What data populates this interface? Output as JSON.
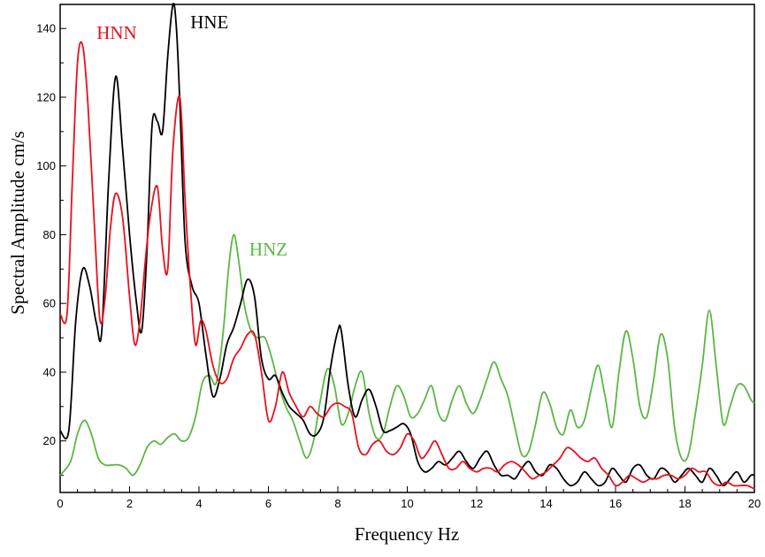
{
  "chart_data": {
    "type": "line",
    "title": "",
    "xlabel": "Frequency Hz",
    "ylabel": "Spectral Amplitude cm/s",
    "xlim": [
      0,
      20
    ],
    "ylim": [
      5,
      147
    ],
    "x_ticks": [
      0,
      2,
      4,
      6,
      8,
      10,
      12,
      14,
      16,
      18,
      20
    ],
    "y_ticks": [
      20,
      40,
      60,
      80,
      100,
      120,
      140
    ],
    "grid": false,
    "legend": "inline labels near curves",
    "series": [
      {
        "name": "HNE",
        "color": "#000000",
        "x": [
          0,
          0.25,
          0.45,
          0.65,
          0.85,
          1.05,
          1.2,
          1.4,
          1.6,
          1.8,
          2.0,
          2.2,
          2.35,
          2.5,
          2.65,
          2.8,
          2.95,
          3.1,
          3.25,
          3.35,
          3.45,
          3.6,
          3.8,
          4.0,
          4.2,
          4.4,
          4.6,
          4.8,
          5.0,
          5.2,
          5.4,
          5.6,
          5.8,
          6.0,
          6.2,
          6.4,
          6.6,
          6.8,
          7.0,
          7.2,
          7.4,
          7.6,
          7.8,
          8.0,
          8.1,
          8.3,
          8.5,
          8.7,
          8.9,
          9.1,
          9.3,
          9.5,
          9.7,
          9.9,
          10.1,
          10.3,
          10.5,
          10.7,
          10.9,
          11.1,
          11.3,
          11.5,
          11.7,
          11.9,
          12.1,
          12.3,
          12.5,
          12.7,
          12.9,
          13.1,
          13.3,
          13.5,
          13.7,
          13.9,
          14.1,
          14.3,
          14.5,
          14.7,
          14.9,
          15.1,
          15.3,
          15.5,
          15.7,
          15.9,
          16.1,
          16.3,
          16.5,
          16.7,
          16.9,
          17.1,
          17.3,
          17.5,
          17.7,
          17.9,
          18.1,
          18.3,
          18.5,
          18.7,
          18.9,
          19.1,
          19.3,
          19.5,
          19.7,
          19.9,
          20.0
        ],
        "y": [
          23,
          23,
          55,
          70,
          65,
          54,
          52,
          96,
          126,
          105,
          80,
          60,
          52,
          75,
          112,
          113,
          110,
          132,
          147,
          140,
          118,
          78,
          65,
          60,
          45,
          33,
          38,
          48,
          53,
          60,
          67,
          62,
          44,
          38,
          39,
          34,
          30,
          28,
          26,
          22,
          22,
          27,
          42,
          52,
          52,
          36,
          27,
          32,
          35,
          30,
          23,
          23,
          24,
          25,
          22,
          14,
          11,
          12,
          14,
          13,
          15,
          17,
          14,
          12,
          15,
          17,
          13,
          10,
          10,
          9,
          12,
          14,
          11,
          10,
          13,
          12,
          9,
          7,
          8,
          11,
          9,
          7,
          8,
          12,
          10,
          8,
          12,
          13,
          10,
          9,
          12,
          11,
          8,
          10,
          12,
          10,
          8,
          12,
          10,
          7,
          9,
          11,
          8,
          10,
          10
        ]
      },
      {
        "name": "HNN",
        "color": "#e8101e",
        "x": [
          0,
          0.2,
          0.35,
          0.5,
          0.65,
          0.8,
          1.0,
          1.15,
          1.3,
          1.45,
          1.6,
          1.8,
          2.0,
          2.15,
          2.3,
          2.45,
          2.6,
          2.8,
          2.95,
          3.1,
          3.25,
          3.45,
          3.6,
          3.75,
          3.9,
          4.05,
          4.2,
          4.4,
          4.6,
          4.8,
          5.0,
          5.2,
          5.4,
          5.6,
          5.8,
          6.0,
          6.2,
          6.4,
          6.6,
          6.8,
          7.0,
          7.2,
          7.4,
          7.6,
          7.8,
          8.0,
          8.2,
          8.4,
          8.6,
          8.8,
          9.0,
          9.2,
          9.4,
          9.6,
          9.8,
          10.0,
          10.2,
          10.4,
          10.6,
          10.8,
          11.0,
          11.2,
          11.4,
          11.6,
          11.8,
          12.0,
          12.2,
          12.4,
          12.6,
          12.8,
          13.0,
          13.2,
          13.4,
          13.6,
          13.8,
          14.0,
          14.2,
          14.4,
          14.6,
          14.8,
          15.0,
          15.2,
          15.4,
          15.6,
          15.8,
          16.0,
          16.2,
          16.4,
          16.6,
          16.8,
          17.0,
          17.2,
          17.4,
          17.6,
          17.8,
          18.0,
          18.2,
          18.4,
          18.6,
          18.8,
          19.0,
          19.2,
          19.4,
          19.6,
          19.8,
          20.0
        ],
        "y": [
          57,
          57,
          95,
          130,
          135,
          118,
          80,
          55,
          62,
          82,
          92,
          85,
          62,
          48,
          55,
          72,
          86,
          94,
          76,
          70,
          105,
          120,
          90,
          65,
          48,
          55,
          52,
          42,
          37,
          38,
          44,
          47,
          51,
          51,
          40,
          26,
          30,
          40,
          34,
          30,
          27,
          30,
          28,
          27,
          30,
          31,
          30,
          28,
          18,
          16,
          19,
          20,
          17,
          16,
          18,
          22,
          20,
          15,
          17,
          20,
          16,
          12,
          12,
          14,
          12,
          11,
          12,
          12,
          11,
          13,
          14,
          13,
          11,
          9,
          10,
          11,
          13,
          15,
          18,
          17,
          15,
          14,
          15,
          12,
          10,
          7,
          8,
          10,
          9,
          8,
          9,
          9,
          10,
          10,
          9,
          10,
          12,
          11,
          11,
          8,
          7,
          8,
          7,
          7,
          7,
          6
        ]
      },
      {
        "name": "HNZ",
        "color": "#5cb645",
        "x": [
          0,
          0.3,
          0.5,
          0.7,
          0.9,
          1.1,
          1.3,
          1.5,
          1.7,
          1.9,
          2.1,
          2.3,
          2.5,
          2.7,
          2.9,
          3.1,
          3.3,
          3.5,
          3.7,
          3.9,
          4.1,
          4.3,
          4.5,
          4.7,
          4.85,
          5.0,
          5.15,
          5.3,
          5.5,
          5.7,
          5.9,
          6.1,
          6.3,
          6.5,
          6.7,
          6.9,
          7.1,
          7.3,
          7.5,
          7.7,
          7.9,
          8.1,
          8.3,
          8.5,
          8.7,
          8.9,
          9.1,
          9.3,
          9.5,
          9.7,
          9.9,
          10.1,
          10.3,
          10.5,
          10.7,
          10.9,
          11.1,
          11.3,
          11.5,
          11.7,
          11.9,
          12.1,
          12.3,
          12.5,
          12.7,
          12.9,
          13.1,
          13.3,
          13.5,
          13.7,
          13.9,
          14.1,
          14.3,
          14.5,
          14.7,
          14.9,
          15.1,
          15.3,
          15.5,
          15.7,
          15.9,
          16.1,
          16.3,
          16.5,
          16.7,
          16.9,
          17.1,
          17.3,
          17.5,
          17.7,
          17.9,
          18.1,
          18.3,
          18.5,
          18.7,
          18.9,
          19.1,
          19.3,
          19.5,
          19.7,
          19.9,
          20.0
        ],
        "y": [
          10,
          14,
          22,
          26,
          22,
          15,
          13,
          13,
          13,
          12,
          10,
          13,
          18,
          20,
          19,
          21,
          22,
          20,
          21,
          27,
          37,
          39,
          37,
          52,
          70,
          80,
          72,
          60,
          52,
          50,
          50,
          44,
          36,
          30,
          26,
          20,
          15,
          20,
          32,
          41,
          36,
          25,
          28,
          36,
          40,
          28,
          21,
          22,
          30,
          36,
          33,
          27,
          28,
          32,
          36,
          28,
          26,
          32,
          36,
          31,
          28,
          32,
          38,
          43,
          38,
          33,
          24,
          16,
          17,
          25,
          34,
          31,
          24,
          22,
          29,
          24,
          26,
          35,
          42,
          33,
          24,
          40,
          52,
          44,
          30,
          27,
          38,
          51,
          44,
          24,
          15,
          16,
          28,
          42,
          58,
          42,
          25,
          30,
          36,
          36,
          32,
          31
        ]
      }
    ]
  }
}
